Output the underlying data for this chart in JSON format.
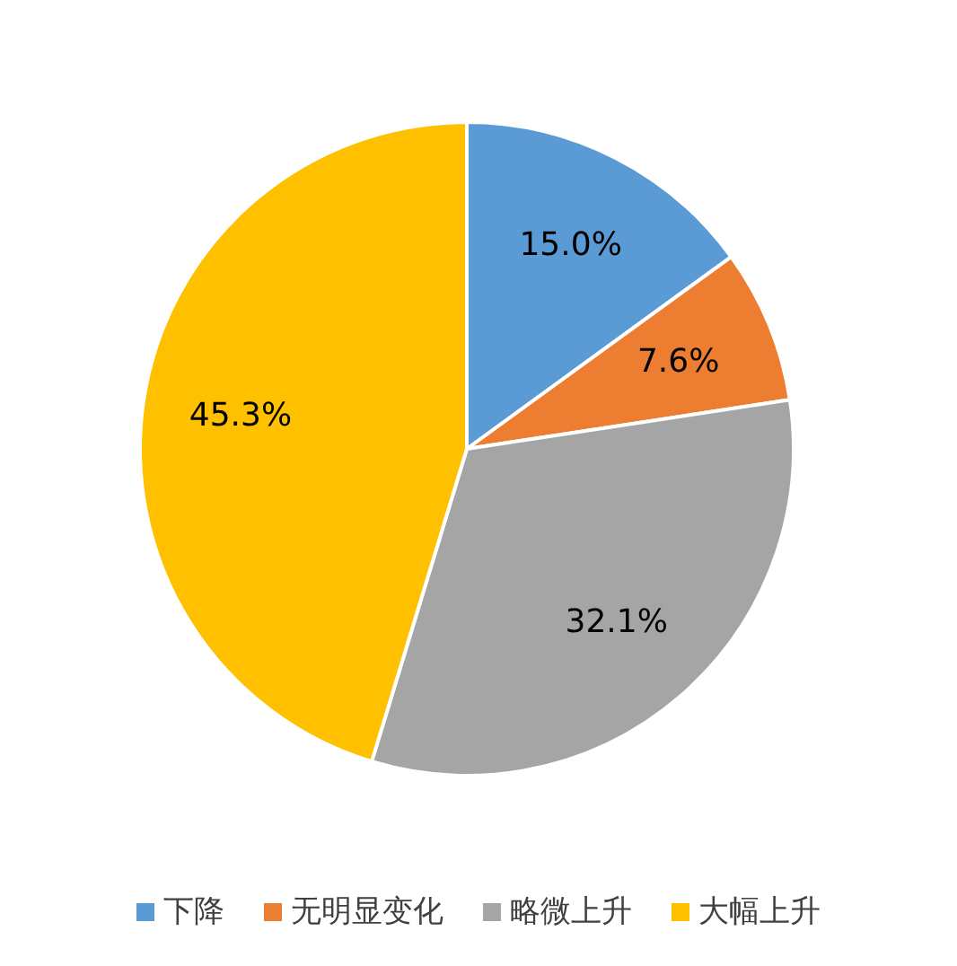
{
  "chart_data": {
    "type": "pie",
    "categories": [
      "下降",
      "无明显变化",
      "略微上升",
      "大幅上升"
    ],
    "values": [
      15.0,
      7.6,
      32.1,
      45.3
    ],
    "colors": [
      "#5b9bd5",
      "#ed7d31",
      "#a5a5a5",
      "#ffc000"
    ],
    "value_labels": [
      "15.0%",
      "7.6%",
      "32.1%",
      "45.3%"
    ],
    "legend": "bottom"
  }
}
